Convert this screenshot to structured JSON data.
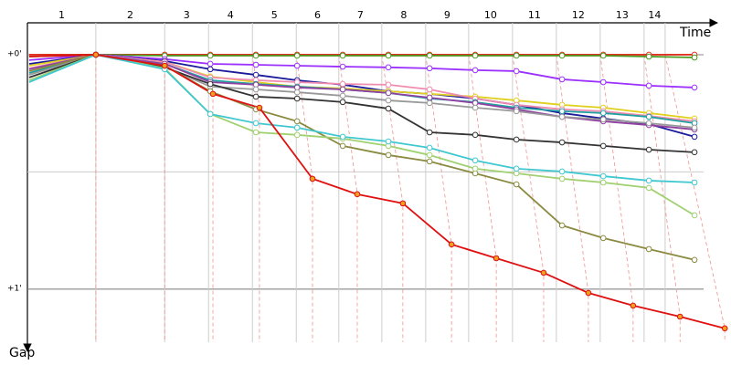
{
  "chart_data": {
    "type": "line",
    "x_label": "Time",
    "y_label": "Gap",
    "laps": [
      "1",
      "2",
      "3",
      "4",
      "5",
      "6",
      "7",
      "8",
      "9",
      "10",
      "11",
      "12",
      "13",
      "14"
    ],
    "lap_boundaries": [
      0,
      1.56,
      3.13,
      4.13,
      5.13,
      6.13,
      7.1,
      8.08,
      9.08,
      10.06,
      11.06,
      12.06,
      13.06,
      14.06,
      14.54
    ],
    "xlim": [
      0,
      16
    ],
    "ylim": [
      -0.136,
      1.226
    ],
    "yticks": [
      {
        "value": 0,
        "label": "+0'"
      },
      {
        "value": 1,
        "label": "+1'"
      }
    ],
    "ygrid": [
      0.5
    ],
    "x": [
      0.04,
      1.56,
      3.13,
      4.17,
      5.21,
      6.15,
      7.19,
      8.23,
      9.17,
      10.21,
      11.15,
      12.19,
      13.13,
      14.17,
      15.21
    ],
    "series": [
      {
        "color": "#e03020",
        "values": [
          0,
          0,
          0,
          0,
          0,
          0,
          0,
          0,
          0,
          0,
          0,
          0,
          0,
          0,
          0
        ]
      },
      {
        "color": "#4a9a20",
        "values": [
          0.008,
          0,
          0.004,
          0.004,
          0.004,
          0.004,
          0.004,
          0.004,
          0.004,
          0.004,
          0.004,
          0.004,
          0.004,
          0.008,
          0.012
        ]
      },
      {
        "color": "#9b30ff",
        "values": [
          0.023,
          0,
          0.019,
          0.039,
          0.043,
          0.047,
          0.051,
          0.054,
          0.058,
          0.066,
          0.07,
          0.105,
          0.117,
          0.132,
          0.14
        ]
      },
      {
        "color": "#1a1a9a",
        "values": [
          0.039,
          0,
          0.027,
          0.062,
          0.086,
          0.109,
          0.128,
          0.156,
          0.167,
          0.187,
          0.214,
          0.249,
          0.272,
          0.296,
          0.35
        ]
      },
      {
        "color": "#e0d020",
        "values": [
          0.047,
          0,
          0.031,
          0.093,
          0.117,
          0.136,
          0.144,
          0.156,
          0.167,
          0.179,
          0.195,
          0.214,
          0.226,
          0.249,
          0.272
        ]
      },
      {
        "color": "#f08cb0",
        "values": [
          0.058,
          0,
          0.031,
          0.097,
          0.109,
          0.117,
          0.125,
          0.128,
          0.148,
          0.187,
          0.214,
          0.233,
          0.241,
          0.261,
          0.284
        ]
      },
      {
        "color": "#20a0a0",
        "values": [
          0.078,
          0,
          0.039,
          0.109,
          0.125,
          0.136,
          0.148,
          0.163,
          0.187,
          0.202,
          0.226,
          0.241,
          0.249,
          0.265,
          0.292
        ]
      },
      {
        "color": "#9040a0",
        "values": [
          0.062,
          0,
          0.039,
          0.117,
          0.128,
          0.14,
          0.148,
          0.163,
          0.183,
          0.206,
          0.233,
          0.265,
          0.284,
          0.3,
          0.319
        ]
      },
      {
        "color": "#999999",
        "values": [
          0.086,
          0,
          0.051,
          0.136,
          0.148,
          0.16,
          0.175,
          0.195,
          0.206,
          0.226,
          0.241,
          0.265,
          0.276,
          0.292,
          0.311
        ]
      },
      {
        "color": "#333333",
        "values": [
          0.097,
          0,
          0.054,
          0.125,
          0.179,
          0.187,
          0.202,
          0.23,
          0.331,
          0.342,
          0.362,
          0.374,
          0.389,
          0.405,
          0.416
        ]
      },
      {
        "color": "#8a8a40",
        "values": [
          0.07,
          0,
          0.047,
          0.156,
          0.233,
          0.284,
          0.389,
          0.428,
          0.455,
          0.506,
          0.553,
          0.728,
          0.782,
          0.829,
          0.875
        ]
      },
      {
        "color": "#a0d070",
        "values": [
          0.109,
          0,
          0.058,
          0.253,
          0.331,
          0.342,
          0.358,
          0.389,
          0.428,
          0.486,
          0.506,
          0.529,
          0.545,
          0.568,
          0.685
        ]
      },
      {
        "color": "#40c8d0",
        "values": [
          0.117,
          0,
          0.062,
          0.253,
          0.292,
          0.311,
          0.35,
          0.37,
          0.397,
          0.451,
          0.486,
          0.498,
          0.518,
          0.537,
          0.545
        ]
      },
      {
        "color": "#e01010",
        "marker_fill": "#f0a020",
        "x": [
          0.04,
          1.56,
          3.13,
          4.23,
          5.29,
          6.5,
          7.52,
          8.56,
          9.67,
          10.69,
          11.77,
          12.79,
          13.81,
          14.88,
          15.9
        ],
        "values": [
          0.008,
          0,
          0.047,
          0.167,
          0.226,
          0.529,
          0.595,
          0.634,
          0.809,
          0.868,
          0.93,
          1.016,
          1.07,
          1.117,
          1.167
        ]
      }
    ]
  }
}
